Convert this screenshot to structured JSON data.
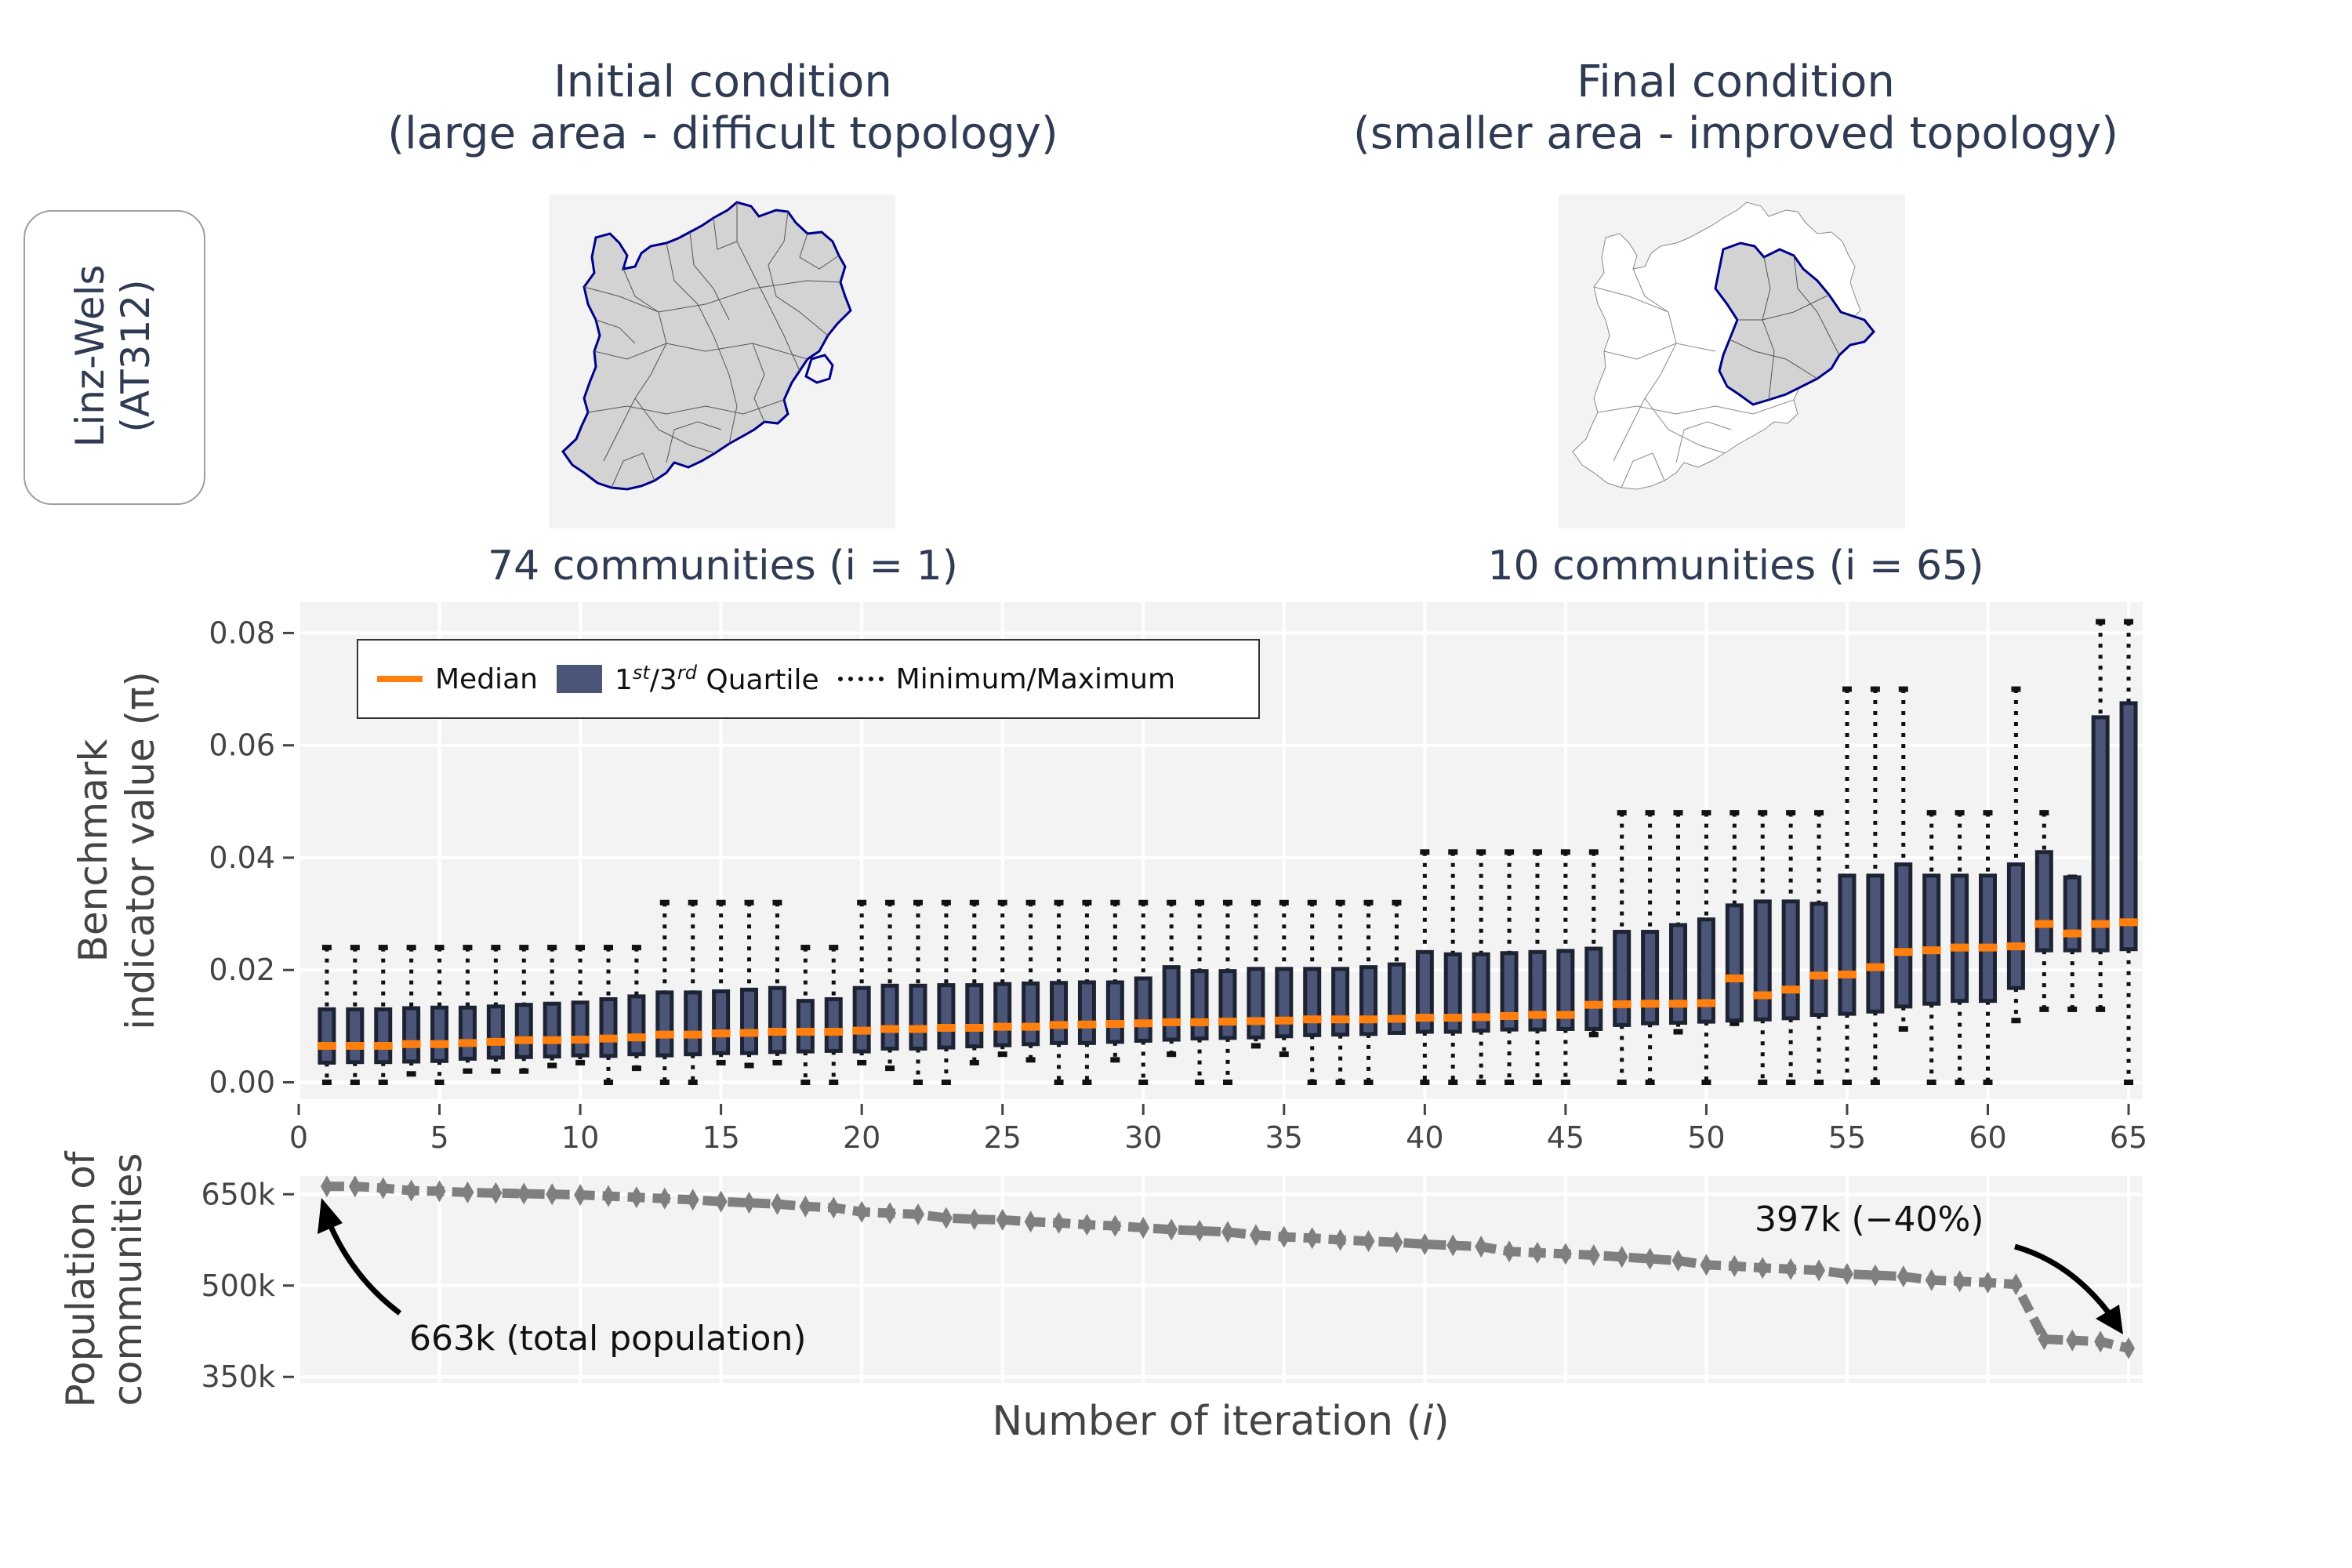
{
  "header": {
    "left_title_line1": "Initial condition",
    "left_title_line2": "(large area - difficult topology)",
    "right_title_line1": "Final condition",
    "right_title_line2": "(smaller area - improved topology)",
    "left_caption": "74 communities (i = 1)",
    "right_caption": "10 communities (i = 65)"
  },
  "region": {
    "line1": "Linz-Wels",
    "line2": "(AT312)"
  },
  "colors": {
    "median": "#ff7f0e",
    "box": "#4a5577",
    "population": "#7f7f7f",
    "map_outline": "#00008b",
    "map_fill": "#d3d3d3"
  },
  "legend": {
    "median": "Median",
    "quartile_prefix": "1",
    "quartile_sup1": "st",
    "quartile_mid": "/3",
    "quartile_sup2": "rd",
    "quartile_suffix": " Quartile",
    "minmax": "Minimum/Maximum"
  },
  "annotations": {
    "start": "663k (total population)",
    "end": "397k (−40%)"
  },
  "chart_data": [
    {
      "type": "box",
      "ylabel": "Benchmark indicator value (π)",
      "xlabel": "Number of iteration (i)",
      "xlim": [
        0,
        65.5
      ],
      "ylim": [
        -0.003,
        0.0855
      ],
      "xticks": [
        0,
        5,
        10,
        15,
        20,
        25,
        30,
        35,
        40,
        45,
        50,
        55,
        60,
        65
      ],
      "yticks": [
        "0.00",
        "0.02",
        "0.04",
        "0.06",
        "0.08"
      ],
      "iterations": [
        1,
        2,
        3,
        4,
        5,
        6,
        7,
        8,
        9,
        10,
        11,
        12,
        13,
        14,
        15,
        16,
        17,
        18,
        19,
        20,
        21,
        22,
        23,
        24,
        25,
        26,
        27,
        28,
        29,
        30,
        31,
        32,
        33,
        34,
        35,
        36,
        37,
        38,
        39,
        40,
        41,
        42,
        43,
        44,
        45,
        46,
        47,
        48,
        49,
        50,
        51,
        52,
        53,
        54,
        55,
        56,
        57,
        58,
        59,
        60,
        61,
        62,
        63,
        64,
        65
      ],
      "median": [
        0.0065,
        0.0065,
        0.0065,
        0.0068,
        0.0068,
        0.007,
        0.0072,
        0.0075,
        0.0075,
        0.0076,
        0.0078,
        0.008,
        0.0085,
        0.0085,
        0.0087,
        0.0088,
        0.009,
        0.009,
        0.009,
        0.0092,
        0.0095,
        0.0095,
        0.0097,
        0.0097,
        0.0099,
        0.0099,
        0.0102,
        0.0103,
        0.0104,
        0.0105,
        0.0107,
        0.0107,
        0.0108,
        0.0109,
        0.011,
        0.0112,
        0.0112,
        0.0112,
        0.0113,
        0.0115,
        0.0115,
        0.0116,
        0.0118,
        0.012,
        0.012,
        0.0138,
        0.0139,
        0.014,
        0.014,
        0.0141,
        0.0185,
        0.0155,
        0.0165,
        0.019,
        0.0192,
        0.0205,
        0.0232,
        0.0235,
        0.024,
        0.024,
        0.0242,
        0.0282,
        0.0265,
        0.0282,
        0.0285
      ],
      "q1": [
        0.0035,
        0.0036,
        0.0036,
        0.0037,
        0.0038,
        0.0042,
        0.0044,
        0.0045,
        0.0046,
        0.0048,
        0.0047,
        0.005,
        0.0048,
        0.005,
        0.0052,
        0.0052,
        0.0054,
        0.0055,
        0.0056,
        0.0055,
        0.006,
        0.006,
        0.0062,
        0.0064,
        0.0066,
        0.0068,
        0.007,
        0.007,
        0.0072,
        0.0074,
        0.0076,
        0.0078,
        0.0079,
        0.008,
        0.0082,
        0.0084,
        0.0085,
        0.0086,
        0.0088,
        0.009,
        0.009,
        0.0092,
        0.0094,
        0.0094,
        0.0095,
        0.0095,
        0.0102,
        0.0105,
        0.0106,
        0.0108,
        0.011,
        0.0112,
        0.0114,
        0.012,
        0.0122,
        0.0126,
        0.0135,
        0.014,
        0.0145,
        0.0145,
        0.0168,
        0.0235,
        0.0235,
        0.0235,
        0.0237
      ],
      "q3": [
        0.013,
        0.013,
        0.013,
        0.0132,
        0.0133,
        0.0133,
        0.0135,
        0.0138,
        0.014,
        0.0142,
        0.0148,
        0.0153,
        0.016,
        0.016,
        0.0162,
        0.0165,
        0.0168,
        0.0145,
        0.0148,
        0.0168,
        0.0172,
        0.0172,
        0.0173,
        0.0173,
        0.0175,
        0.0176,
        0.0177,
        0.0178,
        0.0178,
        0.0185,
        0.0205,
        0.0198,
        0.0198,
        0.0202,
        0.0202,
        0.0202,
        0.0202,
        0.0205,
        0.021,
        0.0232,
        0.0228,
        0.0228,
        0.023,
        0.0232,
        0.0234,
        0.0238,
        0.0268,
        0.0268,
        0.028,
        0.029,
        0.0315,
        0.0322,
        0.0322,
        0.0318,
        0.0368,
        0.0368,
        0.0388,
        0.0368,
        0.0368,
        0.0368,
        0.0388,
        0.041,
        0.0365,
        0.065,
        0.0675
      ],
      "min": [
        0.0,
        0.0,
        0.0,
        0.0015,
        0.0,
        0.002,
        0.002,
        0.002,
        0.003,
        0.0035,
        0.0,
        0.0025,
        0.0,
        0.0,
        0.0035,
        0.003,
        0.0035,
        0.0,
        0.0,
        0.0035,
        0.0025,
        0.0,
        0.0,
        0.0035,
        0.005,
        0.004,
        0.0,
        0.0,
        0.004,
        0.0,
        0.005,
        0.0,
        0.0,
        0.0065,
        0.005,
        0.0,
        0.0,
        0.0,
        0.009,
        0.0,
        0.0,
        0.0,
        0.0,
        0.0,
        0.0,
        0.0085,
        0.0,
        0.0,
        0.009,
        0.0,
        0.0105,
        0.0,
        0.0,
        0.0,
        0.0,
        0.0,
        0.0095,
        0.0,
        0.0,
        0.0,
        0.011,
        0.013,
        0.013,
        0.013,
        0.0
      ],
      "max": [
        0.024,
        0.024,
        0.024,
        0.024,
        0.024,
        0.024,
        0.024,
        0.024,
        0.024,
        0.024,
        0.024,
        0.024,
        0.032,
        0.032,
        0.032,
        0.032,
        0.032,
        0.024,
        0.024,
        0.032,
        0.032,
        0.032,
        0.032,
        0.032,
        0.032,
        0.032,
        0.032,
        0.032,
        0.032,
        0.032,
        0.032,
        0.032,
        0.032,
        0.032,
        0.032,
        0.032,
        0.032,
        0.032,
        0.032,
        0.041,
        0.041,
        0.041,
        0.041,
        0.041,
        0.041,
        0.041,
        0.048,
        0.048,
        0.048,
        0.048,
        0.048,
        0.048,
        0.048,
        0.048,
        0.07,
        0.07,
        0.07,
        0.048,
        0.048,
        0.048,
        0.07,
        0.048,
        0.0365,
        0.082,
        0.082
      ]
    },
    {
      "type": "line",
      "ylabel": "Population of communities",
      "yticks": [
        "350k",
        "500k",
        "650k"
      ],
      "ylim": [
        340,
        680
      ],
      "unit": "thousand inhabitants",
      "x": [
        1,
        2,
        3,
        4,
        5,
        6,
        7,
        8,
        9,
        10,
        11,
        12,
        13,
        14,
        15,
        16,
        17,
        18,
        19,
        20,
        21,
        22,
        23,
        24,
        25,
        26,
        27,
        28,
        29,
        30,
        31,
        32,
        33,
        34,
        35,
        36,
        37,
        38,
        39,
        40,
        41,
        42,
        43,
        44,
        45,
        46,
        47,
        48,
        49,
        50,
        51,
        52,
        53,
        54,
        55,
        56,
        57,
        58,
        59,
        60,
        61,
        62,
        63,
        64,
        65
      ],
      "values": [
        663,
        663,
        660,
        656,
        655,
        653,
        652,
        651,
        650,
        649,
        647,
        645,
        643,
        641,
        638,
        636,
        634,
        630,
        628,
        621,
        619,
        617,
        611,
        609,
        608,
        605,
        603,
        600,
        598,
        595,
        592,
        590,
        588,
        583,
        580,
        578,
        575,
        573,
        571,
        568,
        566,
        564,
        556,
        554,
        552,
        550,
        547,
        544,
        541,
        534,
        532,
        529,
        527,
        525,
        519,
        517,
        515,
        509,
        507,
        505,
        502,
        412,
        410,
        408,
        397
      ]
    }
  ]
}
